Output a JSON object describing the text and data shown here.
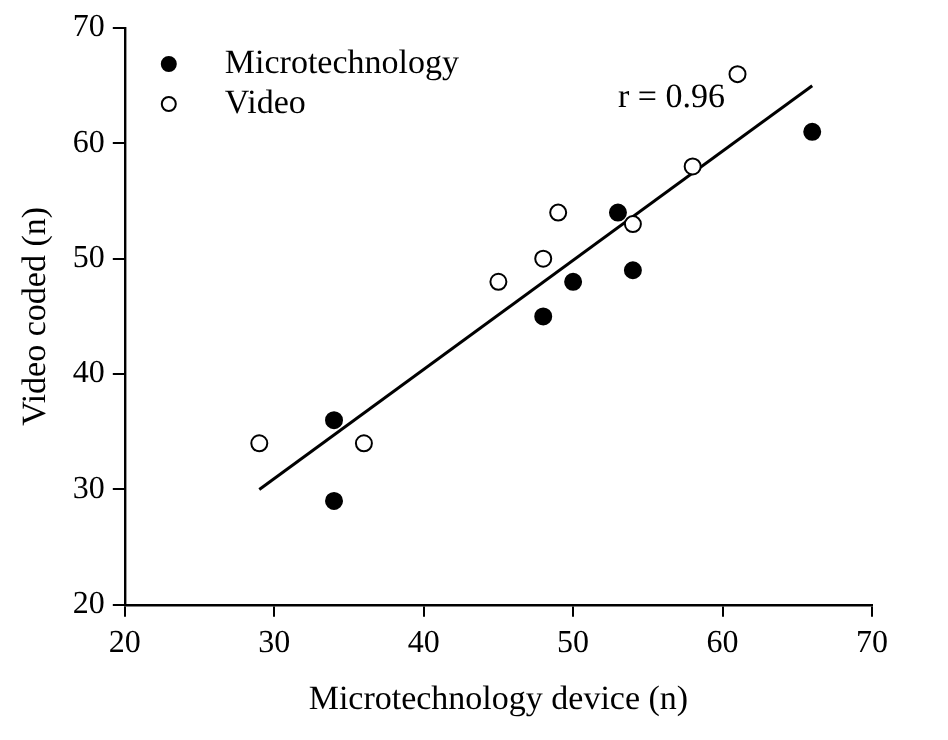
{
  "chart_data": {
    "type": "scatter",
    "xlabel": "Microtechnology device (n)",
    "ylabel": "Video coded (n)",
    "xlim": [
      20,
      70
    ],
    "xticks": [
      20,
      30,
      40,
      50,
      60,
      70
    ],
    "ylim": [
      20,
      70
    ],
    "yticks": [
      20,
      30,
      40,
      50,
      60,
      70
    ],
    "grid": false,
    "legend": "top left",
    "marker": "circle",
    "annotations": [
      "r = 0.96"
    ],
    "series": [
      {
        "name": "Microtechnology",
        "color": "#000000",
        "x": [
          34,
          34,
          48,
          50,
          53,
          54,
          66
        ],
        "values": [
          36,
          29,
          45,
          48,
          54,
          49,
          61
        ]
      },
      {
        "name": "Video",
        "color": "#ffffff",
        "x": [
          29,
          36,
          45,
          48,
          49,
          54,
          58,
          61
        ],
        "values": [
          34,
          34,
          48,
          50,
          54,
          53,
          58,
          66
        ]
      },
      {
        "type": "line",
        "color": "#000000",
        "marker": "none",
        "x": [
          29,
          66
        ],
        "values": [
          30,
          65
        ]
      }
    ]
  }
}
